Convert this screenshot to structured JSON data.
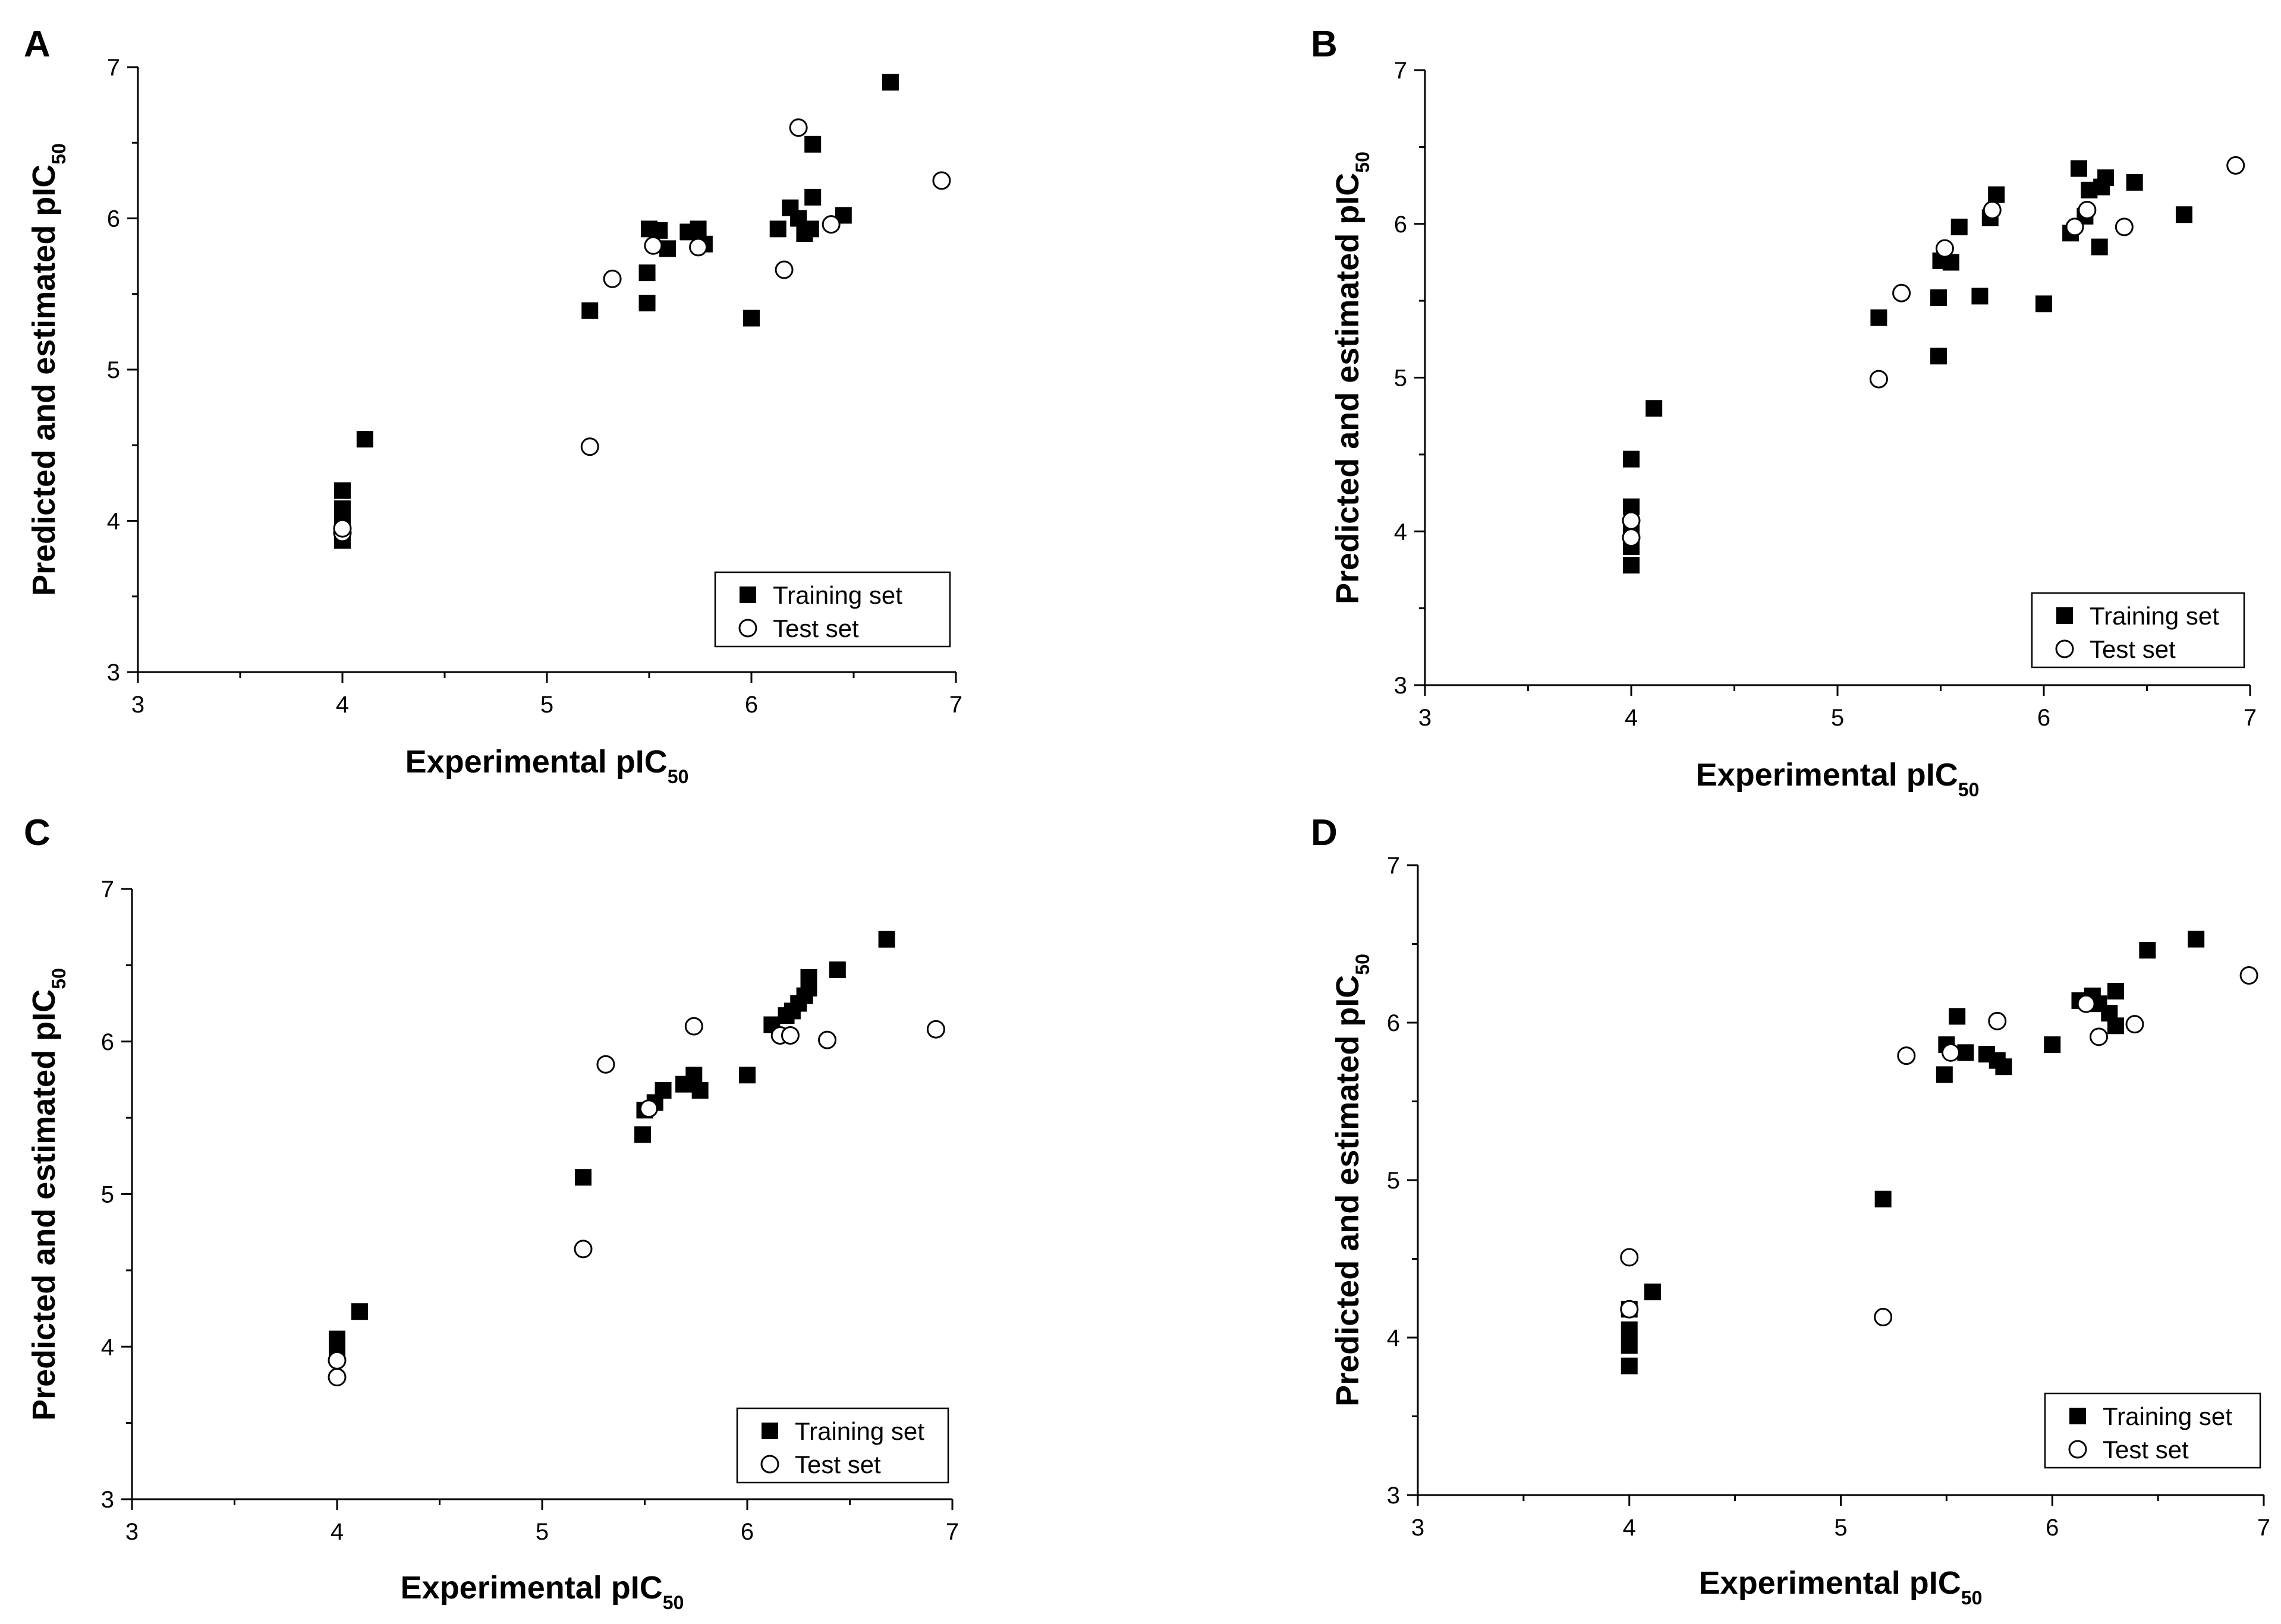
{
  "chart_data": [
    {
      "type": "scatter",
      "panel_label": "A",
      "xlabel": "Experimental pIC",
      "xlabel_sub": "50",
      "ylabel": "Predicted and estimated pIC",
      "ylabel_sub": "50",
      "xlim": [
        3,
        7
      ],
      "ylim": [
        3,
        7
      ],
      "xticks": [
        3,
        4,
        5,
        6,
        7
      ],
      "yticks": [
        3,
        4,
        5,
        6,
        7
      ],
      "grid": false,
      "legend_position": "bottom-right",
      "series": [
        {
          "name": "Training set",
          "marker": "filled-square",
          "points": [
            [
              4.0,
              3.87
            ],
            [
              4.0,
              3.93
            ],
            [
              4.0,
              4.0
            ],
            [
              4.0,
              4.08
            ],
            [
              4.0,
              4.2
            ],
            [
              4.11,
              4.54
            ],
            [
              5.21,
              5.39
            ],
            [
              5.49,
              5.44
            ],
            [
              5.49,
              5.64
            ],
            [
              5.5,
              5.93
            ],
            [
              5.55,
              5.92
            ],
            [
              5.59,
              5.8
            ],
            [
              5.69,
              5.91
            ],
            [
              5.74,
              5.93
            ],
            [
              5.77,
              5.83
            ],
            [
              6.0,
              5.34
            ],
            [
              6.13,
              5.93
            ],
            [
              6.19,
              6.07
            ],
            [
              6.23,
              6.0
            ],
            [
              6.26,
              5.9
            ],
            [
              6.29,
              5.93
            ],
            [
              6.3,
              6.14
            ],
            [
              6.3,
              6.49
            ],
            [
              6.45,
              6.02
            ],
            [
              6.68,
              6.9
            ]
          ]
        },
        {
          "name": "Test set",
          "marker": "open-circle",
          "points": [
            [
              4.0,
              3.92
            ],
            [
              4.0,
              3.95
            ],
            [
              5.21,
              4.49
            ],
            [
              5.32,
              5.6
            ],
            [
              5.52,
              5.82
            ],
            [
              5.74,
              5.81
            ],
            [
              6.16,
              5.66
            ],
            [
              6.23,
              6.6
            ],
            [
              6.39,
              5.96
            ],
            [
              6.93,
              6.25
            ]
          ]
        }
      ]
    },
    {
      "type": "scatter",
      "panel_label": "B",
      "xlabel": "Experimental pIC",
      "xlabel_sub": "50",
      "ylabel": "Predicted and estimated pIC",
      "ylabel_sub": "50",
      "xlim": [
        3,
        7
      ],
      "ylim": [
        3,
        7
      ],
      "xticks": [
        3,
        4,
        5,
        6,
        7
      ],
      "yticks": [
        3,
        4,
        5,
        6,
        7
      ],
      "grid": false,
      "legend_position": "bottom-right",
      "series": [
        {
          "name": "Training set",
          "marker": "filled-square",
          "points": [
            [
              4.0,
              3.78
            ],
            [
              4.0,
              3.9
            ],
            [
              4.0,
              4.0
            ],
            [
              4.0,
              4.16
            ],
            [
              4.0,
              4.47
            ],
            [
              4.11,
              4.8
            ],
            [
              5.2,
              5.39
            ],
            [
              5.49,
              5.14
            ],
            [
              5.49,
              5.52
            ],
            [
              5.5,
              5.76
            ],
            [
              5.55,
              5.75
            ],
            [
              5.59,
              5.98
            ],
            [
              5.69,
              5.53
            ],
            [
              5.74,
              6.04
            ],
            [
              5.77,
              6.19
            ],
            [
              6.0,
              5.48
            ],
            [
              6.13,
              5.94
            ],
            [
              6.17,
              6.36
            ],
            [
              6.2,
              6.05
            ],
            [
              6.22,
              6.22
            ],
            [
              6.27,
              5.85
            ],
            [
              6.28,
              6.24
            ],
            [
              6.3,
              6.3
            ],
            [
              6.44,
              6.27
            ],
            [
              6.68,
              6.06
            ]
          ]
        },
        {
          "name": "Test set",
          "marker": "open-circle",
          "points": [
            [
              4.0,
              3.96
            ],
            [
              4.0,
              4.07
            ],
            [
              5.2,
              4.99
            ],
            [
              5.31,
              5.55
            ],
            [
              5.52,
              5.84
            ],
            [
              5.75,
              6.09
            ],
            [
              6.15,
              5.98
            ],
            [
              6.21,
              6.09
            ],
            [
              6.39,
              5.98
            ],
            [
              6.93,
              6.38
            ]
          ]
        }
      ]
    },
    {
      "type": "scatter",
      "panel_label": "C",
      "xlabel": "Experimental pIC",
      "xlabel_sub": "50",
      "ylabel": "Predicted and estimated pIC",
      "ylabel_sub": "50",
      "xlim": [
        3,
        7
      ],
      "ylim": [
        3,
        7
      ],
      "xticks": [
        3,
        4,
        5,
        6,
        7
      ],
      "yticks": [
        3,
        4,
        5,
        6,
        7
      ],
      "grid": false,
      "legend_position": "bottom-right",
      "series": [
        {
          "name": "Training set",
          "marker": "filled-square",
          "points": [
            [
              4.0,
              3.97
            ],
            [
              4.0,
              4.05
            ],
            [
              4.11,
              4.23
            ],
            [
              5.2,
              5.11
            ],
            [
              5.49,
              5.39
            ],
            [
              5.5,
              5.55
            ],
            [
              5.55,
              5.6
            ],
            [
              5.59,
              5.68
            ],
            [
              5.69,
              5.72
            ],
            [
              5.74,
              5.78
            ],
            [
              5.77,
              5.68
            ],
            [
              6.0,
              5.78
            ],
            [
              6.12,
              6.11
            ],
            [
              6.19,
              6.17
            ],
            [
              6.22,
              6.2
            ],
            [
              6.25,
              6.25
            ],
            [
              6.28,
              6.3
            ],
            [
              6.3,
              6.35
            ],
            [
              6.3,
              6.42
            ],
            [
              6.44,
              6.47
            ],
            [
              6.68,
              6.67
            ]
          ]
        },
        {
          "name": "Test set",
          "marker": "open-circle",
          "points": [
            [
              4.0,
              3.8
            ],
            [
              4.0,
              3.91
            ],
            [
              5.2,
              4.64
            ],
            [
              5.31,
              5.85
            ],
            [
              5.52,
              5.56
            ],
            [
              5.74,
              6.1
            ],
            [
              6.16,
              6.04
            ],
            [
              6.21,
              6.04
            ],
            [
              6.39,
              6.01
            ],
            [
              6.92,
              6.08
            ]
          ]
        }
      ]
    },
    {
      "type": "scatter",
      "panel_label": "D",
      "xlabel": "Experimental pIC",
      "xlabel_sub": "50",
      "ylabel": "Predicted and estimated pIC",
      "ylabel_sub": "50",
      "xlim": [
        3,
        7
      ],
      "ylim": [
        3,
        7
      ],
      "xticks": [
        3,
        4,
        5,
        6,
        7
      ],
      "yticks": [
        3,
        4,
        5,
        6,
        7
      ],
      "grid": false,
      "legend_position": "bottom-right",
      "series": [
        {
          "name": "Training set",
          "marker": "filled-square",
          "points": [
            [
              4.0,
              3.82
            ],
            [
              4.0,
              3.95
            ],
            [
              4.0,
              4.05
            ],
            [
              4.0,
              4.18
            ],
            [
              4.11,
              4.29
            ],
            [
              5.2,
              4.88
            ],
            [
              5.49,
              5.67
            ],
            [
              5.5,
              5.86
            ],
            [
              5.55,
              6.04
            ],
            [
              5.59,
              5.81
            ],
            [
              5.69,
              5.8
            ],
            [
              5.74,
              5.76
            ],
            [
              5.77,
              5.72
            ],
            [
              6.0,
              5.86
            ],
            [
              6.13,
              6.14
            ],
            [
              6.19,
              6.17
            ],
            [
              6.22,
              6.12
            ],
            [
              6.27,
              6.06
            ],
            [
              6.3,
              5.98
            ],
            [
              6.3,
              6.2
            ],
            [
              6.45,
              6.46
            ],
            [
              6.68,
              6.53
            ]
          ]
        },
        {
          "name": "Test set",
          "marker": "open-circle",
          "points": [
            [
              4.0,
              4.18
            ],
            [
              4.0,
              4.51
            ],
            [
              5.2,
              4.13
            ],
            [
              5.31,
              5.79
            ],
            [
              5.52,
              5.81
            ],
            [
              5.74,
              6.01
            ],
            [
              6.16,
              6.12
            ],
            [
              6.22,
              5.91
            ],
            [
              6.39,
              5.99
            ],
            [
              6.93,
              6.3
            ]
          ]
        }
      ]
    }
  ]
}
